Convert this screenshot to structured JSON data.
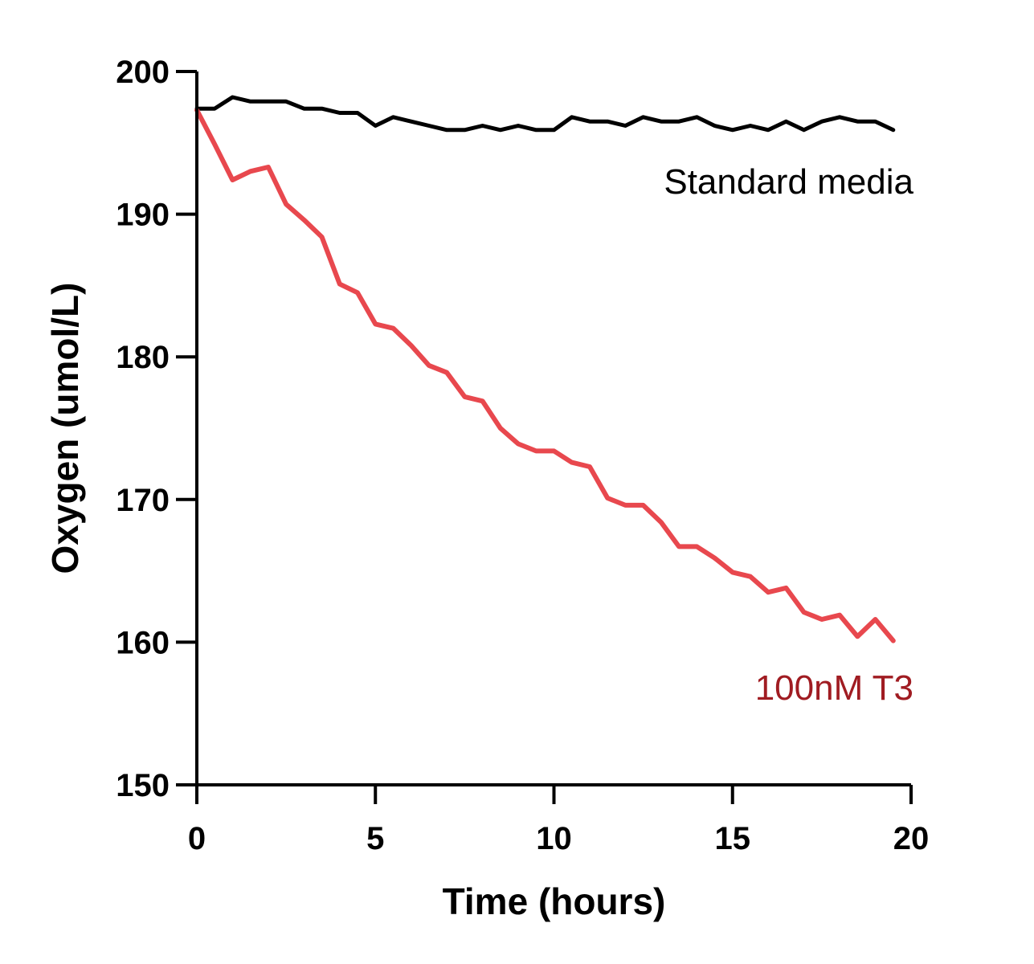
{
  "chart_data": {
    "type": "line",
    "xlabel": "Time (hours)",
    "ylabel": "Oxygen (umol/L)",
    "xlim": [
      0,
      20
    ],
    "ylim": [
      150,
      200
    ],
    "xticks": [
      0,
      5,
      10,
      15,
      20
    ],
    "yticks": [
      150,
      160,
      170,
      180,
      190,
      200
    ],
    "grid": false,
    "legend": "inline-labels",
    "series": [
      {
        "name": "Standard media",
        "color": "#000000",
        "label_color": "#000000",
        "x": [
          0,
          0.5,
          1,
          1.5,
          2,
          2.5,
          3,
          3.5,
          4,
          4.5,
          5,
          5.5,
          6,
          6.5,
          7,
          7.5,
          8,
          8.5,
          9,
          9.5,
          10,
          10.5,
          11,
          11.5,
          12,
          12.5,
          13,
          13.5,
          14,
          14.5,
          15,
          15.5,
          16,
          16.5,
          17,
          17.5,
          18,
          18.5,
          19,
          19.5
        ],
        "y": [
          197.4,
          197.4,
          198.2,
          197.9,
          197.9,
          197.9,
          197.4,
          197.4,
          197.1,
          197.1,
          196.2,
          196.8,
          196.5,
          196.2,
          195.9,
          195.9,
          196.2,
          195.9,
          196.2,
          195.9,
          195.9,
          196.8,
          196.5,
          196.5,
          196.2,
          196.8,
          196.5,
          196.5,
          196.8,
          196.2,
          195.9,
          196.2,
          195.9,
          196.5,
          195.9,
          196.5,
          196.8,
          196.5,
          196.5,
          195.9
        ]
      },
      {
        "name": "100nM T3",
        "color": "#e8484e",
        "label_color": "#a01c22",
        "x": [
          0,
          0.5,
          1,
          1.5,
          2,
          2.5,
          3,
          3.5,
          4,
          4.5,
          5,
          5.5,
          6,
          6.5,
          7,
          7.5,
          8,
          8.5,
          9,
          9.5,
          10,
          10.5,
          11,
          11.5,
          12,
          12.5,
          13,
          13.5,
          14,
          14.5,
          15,
          15.5,
          16,
          16.5,
          17,
          17.5,
          18,
          18.5,
          19,
          19.5
        ],
        "y": [
          197.3,
          194.9,
          192.4,
          193.0,
          193.3,
          190.7,
          189.6,
          188.4,
          185.1,
          184.5,
          182.3,
          182.0,
          180.8,
          179.4,
          178.9,
          177.2,
          176.9,
          175.0,
          173.9,
          173.4,
          173.4,
          172.6,
          172.3,
          170.1,
          169.6,
          169.6,
          168.4,
          166.7,
          166.7,
          165.9,
          164.9,
          164.6,
          163.5,
          163.8,
          162.1,
          161.6,
          161.9,
          160.4,
          161.6,
          160.1
        ]
      }
    ]
  }
}
